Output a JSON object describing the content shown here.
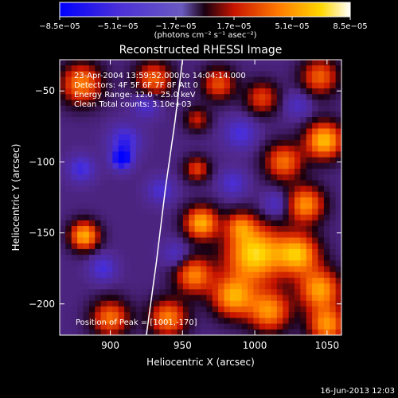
{
  "chart_data": {
    "type": "heatmap",
    "title": "Reconstructed RHESSI Image",
    "xlabel": "Heliocentric X (arcsec)",
    "ylabel": "Heliocentric Y (arcsec)",
    "xlim": [
      865,
      1060
    ],
    "ylim": [
      -222,
      -28
    ],
    "x_ticks": [
      {
        "value": 900,
        "label": "900"
      },
      {
        "value": 950,
        "label": "950"
      },
      {
        "value": 1000,
        "label": "1000"
      },
      {
        "value": 1050,
        "label": "1050"
      }
    ],
    "y_ticks": [
      {
        "value": -50,
        "label": "−50"
      },
      {
        "value": -100,
        "label": "−100"
      },
      {
        "value": -150,
        "label": "−150"
      },
      {
        "value": -200,
        "label": "−200"
      }
    ],
    "colorbar": {
      "min": -8.5e-05,
      "max": 8.5e-05,
      "unit_label": "(photons cm⁻² s⁻¹ asec⁻²)",
      "tick_labels": [
        "−8.5e−05",
        "−5.1e−05",
        "−1.7e−05",
        "1.7e−05",
        "5.1e−05",
        "8.5e−05"
      ],
      "tick_values": [
        -8.5e-05,
        -5.1e-05,
        -1.7e-05,
        1.7e-05,
        5.1e-05,
        8.5e-05
      ]
    },
    "info_lines": [
      "23-Apr-2004 13:59:52.000 to 14:04:14.000",
      "Detectors: 4F 5F 6F 7F 8F  Att 0",
      "Energy Range: 12.0 - 25.0 keV",
      "Clean    Total counts: 3.10e+03"
    ],
    "peak_label": "Position of Peak = [1001,-170]",
    "peak": {
      "x": 1001,
      "y": -170
    },
    "limb_curve": [
      [
        950,
        -28
      ],
      [
        945,
        -70
      ],
      [
        938,
        -120
      ],
      [
        932,
        -170
      ],
      [
        925,
        -222
      ]
    ],
    "blobs": [
      {
        "x": 1000,
        "y": -165,
        "s": 14,
        "a": 1.0
      },
      {
        "x": 1030,
        "y": -165,
        "s": 10,
        "a": 0.85
      },
      {
        "x": 1045,
        "y": -190,
        "s": 10,
        "a": 0.8
      },
      {
        "x": 1048,
        "y": -85,
        "s": 9,
        "a": 0.9
      },
      {
        "x": 1035,
        "y": -130,
        "s": 9,
        "a": 0.75
      },
      {
        "x": 1050,
        "y": -215,
        "s": 9,
        "a": 0.75
      },
      {
        "x": 963,
        "y": -143,
        "s": 8,
        "a": 0.85
      },
      {
        "x": 958,
        "y": -180,
        "s": 9,
        "a": 0.7
      },
      {
        "x": 985,
        "y": -195,
        "s": 10,
        "a": 0.8
      },
      {
        "x": 1010,
        "y": -205,
        "s": 10,
        "a": 0.75
      },
      {
        "x": 940,
        "y": -210,
        "s": 9,
        "a": 0.7
      },
      {
        "x": 882,
        "y": -152,
        "s": 7,
        "a": 0.85
      },
      {
        "x": 1020,
        "y": -100,
        "s": 9,
        "a": 0.65
      },
      {
        "x": 960,
        "y": -105,
        "s": 6,
        "a": 0.5
      },
      {
        "x": 900,
        "y": -210,
        "s": 9,
        "a": 0.65
      },
      {
        "x": 880,
        "y": -45,
        "s": 10,
        "a": 0.7
      },
      {
        "x": 930,
        "y": -42,
        "s": 9,
        "a": 0.6
      },
      {
        "x": 975,
        "y": -45,
        "s": 8,
        "a": 0.55
      },
      {
        "x": 1005,
        "y": -55,
        "s": 8,
        "a": 0.5
      },
      {
        "x": 1045,
        "y": -40,
        "s": 9,
        "a": 0.6
      },
      {
        "x": 990,
        "y": -145,
        "s": 7,
        "a": 0.5
      },
      {
        "x": 960,
        "y": -70,
        "s": 6,
        "a": 0.4
      },
      {
        "x": 910,
        "y": -85,
        "s": 7,
        "a": -0.55
      },
      {
        "x": 908,
        "y": -98,
        "s": 5,
        "a": -0.9
      },
      {
        "x": 880,
        "y": -105,
        "s": 6,
        "a": -0.5
      },
      {
        "x": 935,
        "y": -120,
        "s": 6,
        "a": -0.4
      },
      {
        "x": 895,
        "y": -175,
        "s": 6,
        "a": -0.45
      },
      {
        "x": 990,
        "y": -80,
        "s": 7,
        "a": -0.45
      },
      {
        "x": 985,
        "y": -115,
        "s": 6,
        "a": -0.4
      },
      {
        "x": 1015,
        "y": -130,
        "s": 6,
        "a": -0.35
      },
      {
        "x": 945,
        "y": -165,
        "s": 6,
        "a": -0.3
      },
      {
        "x": 925,
        "y": -60,
        "s": 6,
        "a": -0.4
      },
      {
        "x": 1030,
        "y": -60,
        "s": 6,
        "a": -0.3
      }
    ]
  },
  "footer": {
    "timestamp": "16-Jun-2013 12:03"
  }
}
